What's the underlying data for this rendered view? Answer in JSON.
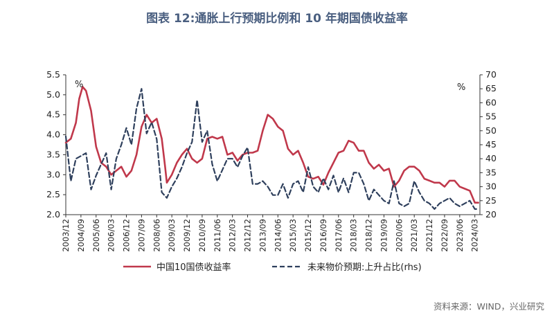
{
  "title": "图表 12:通胀上行预期比例和 10 年期国债收益率",
  "source": "资料来源：WIND，兴业研究",
  "chart_data": {
    "type": "line",
    "y_left_unit": "%",
    "y_right_unit": "%",
    "y_left": {
      "min": 2.0,
      "max": 5.5,
      "ticks": [
        "2.0",
        "2.5",
        "3.0",
        "3.5",
        "4.0",
        "4.5",
        "5.0",
        "5.5"
      ]
    },
    "y_right": {
      "min": 20,
      "max": 70,
      "ticks": [
        "20",
        "25",
        "30",
        "35",
        "40",
        "45",
        "50",
        "55",
        "60",
        "65",
        "70"
      ]
    },
    "x_range": [
      "2003/12",
      "2024/06"
    ],
    "x_ticks": [
      "2003/12",
      "2004/09",
      "2005/06",
      "2006/03",
      "2006/12",
      "2007/09",
      "2008/06",
      "2009/03",
      "2009/12",
      "2010/09",
      "2011/06",
      "2012/03",
      "2012/12",
      "2013/09",
      "2014/06",
      "2015/03",
      "2015/12",
      "2016/09",
      "2017/06",
      "2018/03",
      "2018/12",
      "2019/09",
      "2020/06",
      "2021/03",
      "2021/12",
      "2022/09",
      "2023/06",
      "2024/03"
    ],
    "grid": false,
    "legend_position": "bottom",
    "series": [
      {
        "name": "中国10国债收益率",
        "axis": "left",
        "color": "#c0384b",
        "style": "solid",
        "points": [
          [
            "2003/12",
            3.8
          ],
          [
            "2004/03",
            3.9
          ],
          [
            "2004/06",
            4.3
          ],
          [
            "2004/08",
            4.9
          ],
          [
            "2004/10",
            5.2
          ],
          [
            "2004/12",
            5.1
          ],
          [
            "2005/03",
            4.6
          ],
          [
            "2005/06",
            3.7
          ],
          [
            "2005/09",
            3.3
          ],
          [
            "2005/12",
            3.2
          ],
          [
            "2006/03",
            3.0
          ],
          [
            "2006/06",
            3.1
          ],
          [
            "2006/09",
            3.2
          ],
          [
            "2006/12",
            2.95
          ],
          [
            "2007/03",
            3.1
          ],
          [
            "2007/06",
            3.5
          ],
          [
            "2007/09",
            4.2
          ],
          [
            "2007/12",
            4.5
          ],
          [
            "2008/03",
            4.3
          ],
          [
            "2008/06",
            4.4
          ],
          [
            "2008/09",
            3.9
          ],
          [
            "2008/11",
            3.2
          ],
          [
            "2008/12",
            2.8
          ],
          [
            "2009/03",
            3.0
          ],
          [
            "2009/06",
            3.3
          ],
          [
            "2009/09",
            3.5
          ],
          [
            "2009/12",
            3.65
          ],
          [
            "2010/03",
            3.4
          ],
          [
            "2010/06",
            3.3
          ],
          [
            "2010/09",
            3.4
          ],
          [
            "2010/12",
            3.9
          ],
          [
            "2011/03",
            3.95
          ],
          [
            "2011/06",
            3.9
          ],
          [
            "2011/09",
            3.95
          ],
          [
            "2011/12",
            3.5
          ],
          [
            "2012/03",
            3.55
          ],
          [
            "2012/06",
            3.35
          ],
          [
            "2012/09",
            3.5
          ],
          [
            "2012/12",
            3.55
          ],
          [
            "2013/03",
            3.55
          ],
          [
            "2013/06",
            3.6
          ],
          [
            "2013/09",
            4.1
          ],
          [
            "2013/12",
            4.5
          ],
          [
            "2014/03",
            4.4
          ],
          [
            "2014/06",
            4.2
          ],
          [
            "2014/09",
            4.1
          ],
          [
            "2014/12",
            3.65
          ],
          [
            "2015/03",
            3.5
          ],
          [
            "2015/06",
            3.6
          ],
          [
            "2015/09",
            3.3
          ],
          [
            "2015/12",
            2.95
          ],
          [
            "2016/03",
            2.9
          ],
          [
            "2016/06",
            2.95
          ],
          [
            "2016/09",
            2.75
          ],
          [
            "2016/12",
            3.05
          ],
          [
            "2017/03",
            3.3
          ],
          [
            "2017/06",
            3.55
          ],
          [
            "2017/09",
            3.6
          ],
          [
            "2017/12",
            3.85
          ],
          [
            "2018/03",
            3.8
          ],
          [
            "2018/06",
            3.6
          ],
          [
            "2018/09",
            3.6
          ],
          [
            "2018/12",
            3.3
          ],
          [
            "2019/03",
            3.15
          ],
          [
            "2019/06",
            3.25
          ],
          [
            "2019/09",
            3.1
          ],
          [
            "2019/12",
            3.15
          ],
          [
            "2020/03",
            2.7
          ],
          [
            "2020/06",
            2.85
          ],
          [
            "2020/09",
            3.1
          ],
          [
            "2020/12",
            3.2
          ],
          [
            "2021/03",
            3.2
          ],
          [
            "2021/06",
            3.1
          ],
          [
            "2021/09",
            2.9
          ],
          [
            "2021/12",
            2.85
          ],
          [
            "2022/03",
            2.8
          ],
          [
            "2022/06",
            2.8
          ],
          [
            "2022/09",
            2.7
          ],
          [
            "2022/12",
            2.85
          ],
          [
            "2023/03",
            2.85
          ],
          [
            "2023/06",
            2.7
          ],
          [
            "2023/09",
            2.65
          ],
          [
            "2023/12",
            2.6
          ],
          [
            "2024/03",
            2.3
          ],
          [
            "2024/05",
            2.3
          ]
        ]
      },
      {
        "name": "未来物价预期:上升占比(rhs)",
        "axis": "right",
        "color": "#2e3f5c",
        "style": "dashed",
        "points": [
          [
            "2003/12",
            48
          ],
          [
            "2004/03",
            32
          ],
          [
            "2004/06",
            40
          ],
          [
            "2004/09",
            41
          ],
          [
            "2004/12",
            42
          ],
          [
            "2005/03",
            29
          ],
          [
            "2005/06",
            34
          ],
          [
            "2005/09",
            38
          ],
          [
            "2005/12",
            42
          ],
          [
            "2006/03",
            29
          ],
          [
            "2006/06",
            40
          ],
          [
            "2006/09",
            45
          ],
          [
            "2006/12",
            51
          ],
          [
            "2007/03",
            45
          ],
          [
            "2007/06",
            58
          ],
          [
            "2007/09",
            65
          ],
          [
            "2007/12",
            49
          ],
          [
            "2008/03",
            53
          ],
          [
            "2008/06",
            47
          ],
          [
            "2008/09",
            28
          ],
          [
            "2008/12",
            26
          ],
          [
            "2009/03",
            30
          ],
          [
            "2009/06",
            33
          ],
          [
            "2009/09",
            37
          ],
          [
            "2009/12",
            42
          ],
          [
            "2010/03",
            46
          ],
          [
            "2010/06",
            61
          ],
          [
            "2010/09",
            46
          ],
          [
            "2010/12",
            50
          ],
          [
            "2011/03",
            38
          ],
          [
            "2011/06",
            32
          ],
          [
            "2011/09",
            36
          ],
          [
            "2011/12",
            40
          ],
          [
            "2012/03",
            40
          ],
          [
            "2012/06",
            37
          ],
          [
            "2012/09",
            41
          ],
          [
            "2012/12",
            44
          ],
          [
            "2013/03",
            31
          ],
          [
            "2013/06",
            31
          ],
          [
            "2013/09",
            32
          ],
          [
            "2013/12",
            30
          ],
          [
            "2014/03",
            27
          ],
          [
            "2014/06",
            27
          ],
          [
            "2014/09",
            31
          ],
          [
            "2014/12",
            26
          ],
          [
            "2015/03",
            31
          ],
          [
            "2015/06",
            32
          ],
          [
            "2015/09",
            28
          ],
          [
            "2015/12",
            37
          ],
          [
            "2016/03",
            30
          ],
          [
            "2016/06",
            28
          ],
          [
            "2016/09",
            33
          ],
          [
            "2016/12",
            29
          ],
          [
            "2017/03",
            34
          ],
          [
            "2017/06",
            28
          ],
          [
            "2017/09",
            33
          ],
          [
            "2017/12",
            28
          ],
          [
            "2018/03",
            35
          ],
          [
            "2018/06",
            35
          ],
          [
            "2018/09",
            31
          ],
          [
            "2018/12",
            25
          ],
          [
            "2019/03",
            29
          ],
          [
            "2019/06",
            27
          ],
          [
            "2019/09",
            25
          ],
          [
            "2019/12",
            24
          ],
          [
            "2020/03",
            32
          ],
          [
            "2020/06",
            24
          ],
          [
            "2020/09",
            23
          ],
          [
            "2020/12",
            24
          ],
          [
            "2021/03",
            32
          ],
          [
            "2021/06",
            28
          ],
          [
            "2021/09",
            25
          ],
          [
            "2021/12",
            24
          ],
          [
            "2022/03",
            22
          ],
          [
            "2022/06",
            24
          ],
          [
            "2022/09",
            25
          ],
          [
            "2022/12",
            26
          ],
          [
            "2023/03",
            24
          ],
          [
            "2023/06",
            23
          ],
          [
            "2023/09",
            24
          ],
          [
            "2023/12",
            25
          ],
          [
            "2024/03",
            22
          ],
          [
            "2024/05",
            22
          ]
        ]
      }
    ]
  }
}
